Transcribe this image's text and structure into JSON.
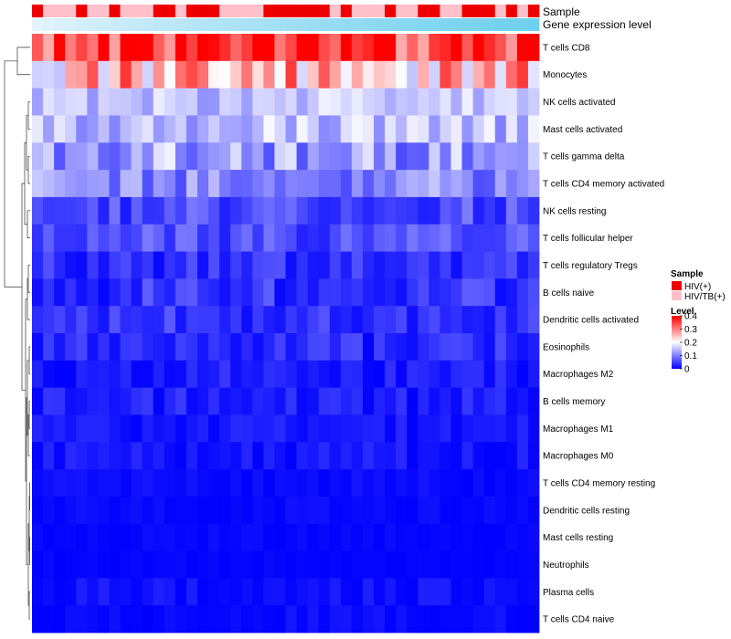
{
  "chart_data": {
    "type": "heatmap",
    "title": "",
    "rows": [
      "T cells CD8",
      "Monocytes",
      "NK cells activated",
      "Mast cells activated",
      "T cells gamma delta",
      "T cells CD4 memory activated",
      "NK cells resting",
      "T cells follicular helper",
      "T cells regulatory  Tregs",
      "B cells naive",
      "Dendritic cells activated",
      "Eosinophils",
      "Macrophages M2",
      "B cells memory",
      "Macrophages M1",
      "Macrophages M0",
      "T cells CD4 memory resting",
      "Dendritic cells resting",
      "Mast cells resting",
      "Neutrophils",
      "Plasma cells",
      "T cells CD4 naive"
    ],
    "n_columns": 46,
    "row_means": [
      0.36,
      0.26,
      0.15,
      0.15,
      0.12,
      0.11,
      0.06,
      0.06,
      0.035,
      0.04,
      0.04,
      0.03,
      0.02,
      0.025,
      0.015,
      0.015,
      0.008,
      0.006,
      0.004,
      0.003,
      0.008,
      0.006
    ],
    "row_spreads": [
      0.1,
      0.11,
      0.04,
      0.05,
      0.07,
      0.05,
      0.04,
      0.035,
      0.03,
      0.035,
      0.03,
      0.03,
      0.025,
      0.025,
      0.018,
      0.018,
      0.01,
      0.008,
      0.006,
      0.004,
      0.018,
      0.012
    ],
    "annotations": [
      {
        "name": "Sample",
        "values": [
          "HIV(+)",
          "HIV/TB(+)",
          "HIV/TB(+)",
          "HIV/TB(+)",
          "HIV(+)",
          "HIV/TB(+)",
          "HIV/TB(+)",
          "HIV(+)",
          "HIV/TB(+)",
          "HIV/TB(+)",
          "HIV/TB(+)",
          "HIV(+)",
          "HIV(+)",
          "HIV/TB(+)",
          "HIV(+)",
          "HIV(+)",
          "HIV(+)",
          "HIV/TB(+)",
          "HIV/TB(+)",
          "HIV/TB(+)",
          "HIV/TB(+)",
          "HIV(+)",
          "HIV(+)",
          "HIV(+)",
          "HIV(+)",
          "HIV(+)",
          "HIV(+)",
          "HIV/TB(+)",
          "HIV(+)",
          "HIV/TB(+)",
          "HIV/TB(+)",
          "HIV/TB(+)",
          "HIV(+)",
          "HIV/TB(+)",
          "HIV/TB(+)",
          "HIV(+)",
          "HIV(+)",
          "HIV/TB(+)",
          "HIV/TB(+)",
          "HIV(+)",
          "HIV(+)",
          "HIV(+)",
          "HIV/TB(+)",
          "HIV(+)",
          "HIV/TB(+)",
          "HIV(+)"
        ]
      },
      {
        "name": "Gene expression level",
        "type": "gradient",
        "colors": [
          "#e4f4fb",
          "#6fd0ee"
        ]
      }
    ],
    "legends": [
      {
        "title": "Sample",
        "entries": [
          {
            "label": "HIV(+)",
            "color": "#ee0000"
          },
          {
            "label": "HIV/TB(+)",
            "color": "#ffc0cb"
          }
        ]
      },
      {
        "title": "Level",
        "ticks": [
          "0.4",
          "0.3",
          "0.2",
          "0.1",
          "0"
        ],
        "range": [
          0,
          0.4
        ],
        "colors": [
          "#0000ff",
          "#ffffff",
          "#ff0000"
        ]
      }
    ],
    "sample_colors": {
      "HIV(+)": "#ee0000",
      "HIV/TB(+)": "#ffc0cb"
    },
    "color_scale": {
      "low": "#0000ff",
      "mid": "#ffffff",
      "high": "#ff0000",
      "domain": [
        0,
        0.2,
        0.4
      ]
    },
    "dendrogram": "row",
    "seed": 20240601
  }
}
